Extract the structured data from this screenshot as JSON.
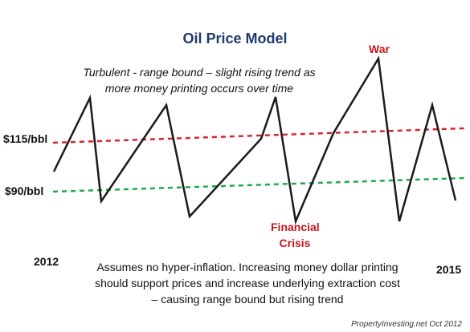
{
  "title": "Oil Price Model",
  "subtitle": "Turbulent  - range bound – slight rising trend as more money printing occurs over time",
  "y_labels": {
    "upper": "$115/bbl",
    "lower": "$90/bbl"
  },
  "years": {
    "start": "2012",
    "end": "2015"
  },
  "annotations": {
    "war": "War",
    "crisis": "Financial Crisis"
  },
  "footnote": "Assumes no hyper-inflation. Increasing money dollar printing should support prices and increase underlying extraction cost – causing range bound but rising trend",
  "credit": "PropertyInvesting.net Oct 2012",
  "colors": {
    "price_line": "#1a1a1a",
    "upper_trend": "#d9262b",
    "lower_trend": "#22a84a",
    "title": "#1f3a6e",
    "annotation": "#c0171d"
  }
}
